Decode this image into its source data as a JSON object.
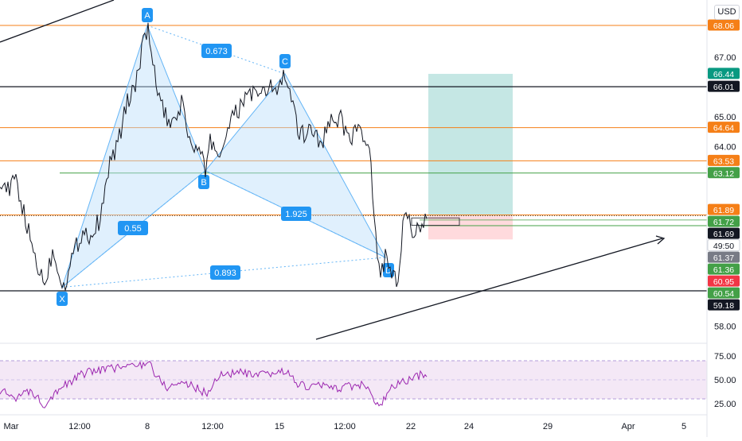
{
  "currency": "USD",
  "chart_data": {
    "type": "line",
    "symbol_currency": "USD",
    "xlabels": [
      "Mar",
      "12:00",
      "8",
      "12:00",
      "15",
      "12:00",
      "22",
      "24",
      "29",
      "Apr",
      "5"
    ],
    "price_ticks": [
      "67.00",
      "65.00",
      "64.00",
      "58.00"
    ],
    "ylim": [
      57.6,
      69.0
    ],
    "rsi": {
      "ticks": [
        "75.00",
        "50.00",
        "25.00"
      ],
      "upper": 70,
      "lower": 30,
      "ylim": [
        15,
        85
      ]
    },
    "horizontal_levels": [
      {
        "label": "68.06",
        "value": 68.06,
        "color": "#f57f17"
      },
      {
        "label": "66.01",
        "value": 66.01,
        "color": "#131722"
      },
      {
        "label": "64.64",
        "value": 64.64,
        "color": "#f57f17"
      },
      {
        "label": "63.53",
        "value": 63.53,
        "color": "#f57f17"
      },
      {
        "label": "63.12",
        "value": 63.12,
        "color": "#43a047"
      },
      {
        "label": "61.72",
        "value": 61.72,
        "color": "#f57f17"
      },
      {
        "label": "61.36",
        "value": 61.36,
        "color": "#43a047"
      },
      {
        "label": "59.18",
        "value": 59.18,
        "color": "#131722"
      }
    ],
    "price_badges": [
      {
        "label": "68.06",
        "value": 68.06,
        "bg": "#f57f17",
        "fg": "#ffffff"
      },
      {
        "label": "66.44",
        "value": 66.44,
        "bg": "#089981",
        "fg": "#ffffff"
      },
      {
        "label": "66.01",
        "value": 66.01,
        "bg": "#131722",
        "fg": "#ffffff"
      },
      {
        "label": "64.64",
        "value": 64.64,
        "bg": "#f57f17",
        "fg": "#ffffff"
      },
      {
        "label": "63.53",
        "value": 63.53,
        "bg": "#f57f17",
        "fg": "#ffffff"
      },
      {
        "label": "63.12",
        "value": 63.12,
        "bg": "#43a047",
        "fg": "#ffffff"
      },
      {
        "label": "61.89",
        "value": 61.89,
        "bg": "#f57f17",
        "fg": "#ffffff"
      },
      {
        "label": "61.72",
        "value": 61.72,
        "bg": "#43a047",
        "fg": "#ffffff"
      },
      {
        "label": "61.69",
        "value": 61.69,
        "bg": "#131722",
        "fg": "#ffffff"
      },
      {
        "label": "49:50",
        "value": 61.55,
        "bg": "#ffffff",
        "fg": "#131722"
      },
      {
        "label": "61.37",
        "value": 61.37,
        "bg": "#787b86",
        "fg": "#ffffff"
      },
      {
        "label": "61.36",
        "value": 61.36,
        "bg": "#43a047",
        "fg": "#ffffff"
      },
      {
        "label": "60.95",
        "value": 60.95,
        "bg": "#f23645",
        "fg": "#ffffff"
      },
      {
        "label": "60.54",
        "value": 60.54,
        "bg": "#43a047",
        "fg": "#ffffff"
      },
      {
        "label": "59.18",
        "value": 59.18,
        "bg": "#131722",
        "fg": "#ffffff"
      }
    ],
    "pattern_points": [
      {
        "label": "X",
        "x": "Mar 3",
        "price": 59.3
      },
      {
        "label": "A",
        "x": "Mar 8",
        "price": 68.06
      },
      {
        "label": "B",
        "x": "Mar 11",
        "price": 63.2
      },
      {
        "label": "C",
        "x": "Mar 15",
        "price": 66.44
      },
      {
        "label": "D",
        "x": "Mar 19",
        "price": 60.3
      }
    ],
    "ratios": [
      "0.673",
      "0.55",
      "1.925",
      "0.893"
    ],
    "position": {
      "entry": 61.69,
      "target": 66.44,
      "stop": 61.37
    },
    "colors": {
      "pattern_fill": "#bbdefb",
      "pattern_line": "#64b5f6",
      "label_bg": "#2196f3",
      "price_line": "#131722",
      "rsi_line": "#9c27b0",
      "rsi_band": "#f3e5f5",
      "profit_zone": "#b2dfdb",
      "loss_zone": "#ffcdd2"
    }
  }
}
